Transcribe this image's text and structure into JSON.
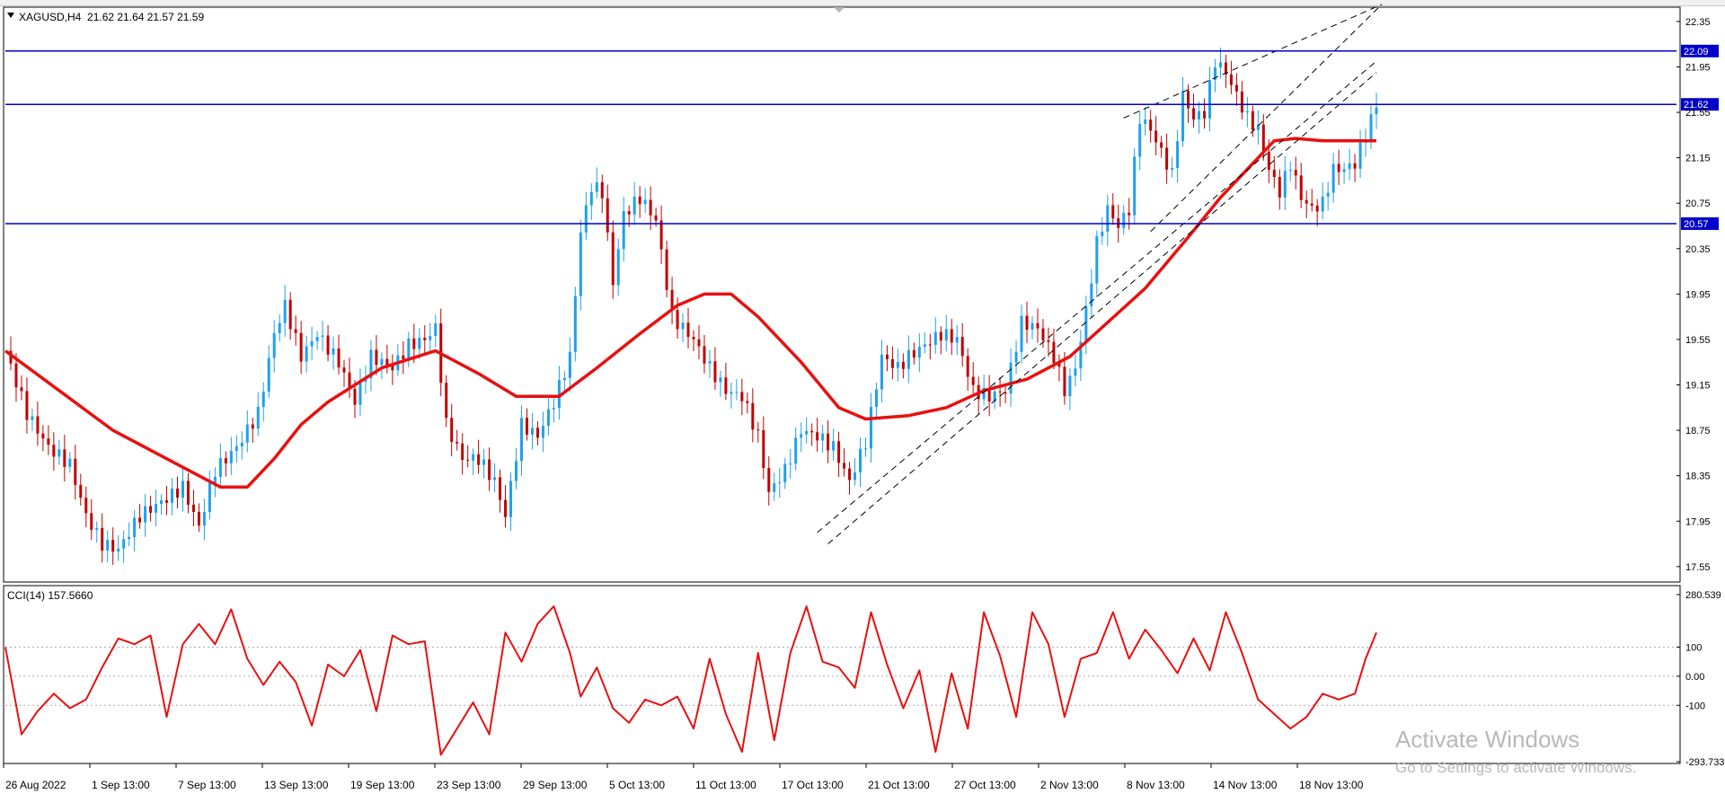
{
  "header": {
    "symbol_line": "XAGUSD,H4  21.62 21.64 21.57 21.59"
  },
  "indicator": {
    "label": "CCI(14) 157.5660"
  },
  "watermark": {
    "title": "Activate Windows",
    "subtitle": "Go to Settings to activate Windows."
  },
  "colors": {
    "bull": "#1ea0f0",
    "bear": "#c00000",
    "ma": "#e81010",
    "hline": "#0000c8",
    "cci": "#e81010",
    "grid": "#aaaaaa",
    "dashed": "#000000"
  },
  "chart_data": [
    {
      "type": "line",
      "description_type": "candlestick",
      "xlabel": "",
      "ylabel": "",
      "ylim": [
        17.43,
        22.46
      ],
      "y_ticks": [
        "22.35",
        "21.95",
        "21.55",
        "21.15",
        "20.75",
        "20.35",
        "19.95",
        "19.55",
        "19.15",
        "18.75",
        "18.35",
        "17.95",
        "17.55"
      ],
      "x_ticks": [
        "26 Aug 2022",
        "1 Sep 13:00",
        "7 Sep 13:00",
        "13 Sep 13:00",
        "19 Sep 13:00",
        "23 Sep 13:00",
        "29 Sep 13:00",
        "5 Oct 13:00",
        "11 Oct 13:00",
        "17 Oct 13:00",
        "21 Oct 13:00",
        "27 Oct 13:00",
        "2 Nov 13:00",
        "8 Nov 13:00",
        "14 Nov 13:00",
        "18 Nov 13:00"
      ],
      "horizontal_levels": [
        "22.09",
        "21.62",
        "20.57"
      ],
      "price_path": [
        [
          0,
          19.45
        ],
        [
          4,
          18.9
        ],
        [
          8,
          18.6
        ],
        [
          12,
          18.45
        ],
        [
          15,
          18.0
        ],
        [
          18,
          17.75
        ],
        [
          21,
          17.7
        ],
        [
          25,
          18.0
        ],
        [
          30,
          18.15
        ],
        [
          33,
          18.25
        ],
        [
          36,
          17.9
        ],
        [
          39,
          18.4
        ],
        [
          43,
          18.6
        ],
        [
          47,
          18.9
        ],
        [
          50,
          19.6
        ],
        [
          52,
          19.85
        ],
        [
          55,
          19.4
        ],
        [
          58,
          19.6
        ],
        [
          62,
          19.35
        ],
        [
          65,
          19.0
        ],
        [
          68,
          19.4
        ],
        [
          72,
          19.3
        ],
        [
          75,
          19.5
        ],
        [
          78,
          19.55
        ],
        [
          80,
          19.65
        ],
        [
          82,
          18.8
        ],
        [
          85,
          18.5
        ],
        [
          88,
          18.5
        ],
        [
          91,
          18.3
        ],
        [
          93,
          18.0
        ],
        [
          96,
          18.8
        ],
        [
          99,
          18.7
        ],
        [
          102,
          19.0
        ],
        [
          105,
          19.4
        ],
        [
          107,
          20.5
        ],
        [
          109,
          20.9
        ],
        [
          111,
          20.85
        ],
        [
          113,
          20.05
        ],
        [
          115,
          20.65
        ],
        [
          118,
          20.8
        ],
        [
          121,
          20.6
        ],
        [
          124,
          19.75
        ],
        [
          128,
          19.55
        ],
        [
          131,
          19.3
        ],
        [
          134,
          19.1
        ],
        [
          137,
          19.05
        ],
        [
          140,
          18.7
        ],
        [
          142,
          18.2
        ],
        [
          145,
          18.4
        ],
        [
          148,
          18.75
        ],
        [
          151,
          18.7
        ],
        [
          154,
          18.6
        ],
        [
          157,
          18.3
        ],
        [
          160,
          18.65
        ],
        [
          163,
          19.4
        ],
        [
          166,
          19.3
        ],
        [
          168,
          19.4
        ],
        [
          171,
          19.5
        ],
        [
          174,
          19.6
        ],
        [
          177,
          19.55
        ],
        [
          180,
          19.1
        ],
        [
          183,
          19.05
        ],
        [
          186,
          19.1
        ],
        [
          189,
          19.7
        ],
        [
          192,
          19.65
        ],
        [
          195,
          19.4
        ],
        [
          197,
          19.1
        ],
        [
          199,
          19.3
        ],
        [
          201,
          19.8
        ],
        [
          203,
          20.4
        ],
        [
          205,
          20.7
        ],
        [
          207,
          20.55
        ],
        [
          209,
          20.7
        ],
        [
          211,
          21.5
        ],
        [
          213,
          21.4
        ],
        [
          215,
          21.2
        ],
        [
          217,
          21.0
        ],
        [
          219,
          21.7
        ],
        [
          221,
          21.5
        ],
        [
          223,
          21.55
        ],
        [
          225,
          22.0
        ],
        [
          227,
          21.9
        ],
        [
          229,
          21.7
        ],
        [
          231,
          21.5
        ],
        [
          233,
          21.4
        ],
        [
          235,
          21.05
        ],
        [
          237,
          20.85
        ],
        [
          239,
          21.1
        ],
        [
          241,
          20.8
        ],
        [
          243,
          20.7
        ],
        [
          245,
          20.75
        ],
        [
          247,
          21.05
        ],
        [
          249,
          21.05
        ],
        [
          251,
          21.1
        ],
        [
          253,
          21.35
        ],
        [
          255,
          21.62
        ]
      ],
      "series": [
        {
          "name": "XAGUSD,H4"
        }
      ],
      "moving_average": [
        [
          0,
          19.45
        ],
        [
          10,
          19.1
        ],
        [
          20,
          18.75
        ],
        [
          30,
          18.5
        ],
        [
          40,
          18.25
        ],
        [
          45,
          18.25
        ],
        [
          50,
          18.5
        ],
        [
          55,
          18.8
        ],
        [
          60,
          19.0
        ],
        [
          70,
          19.3
        ],
        [
          80,
          19.45
        ],
        [
          88,
          19.25
        ],
        [
          95,
          19.05
        ],
        [
          103,
          19.05
        ],
        [
          110,
          19.3
        ],
        [
          118,
          19.6
        ],
        [
          125,
          19.85
        ],
        [
          130,
          19.95
        ],
        [
          135,
          19.95
        ],
        [
          140,
          19.75
        ],
        [
          148,
          19.35
        ],
        [
          155,
          18.95
        ],
        [
          160,
          18.85
        ],
        [
          168,
          18.88
        ],
        [
          175,
          18.95
        ],
        [
          182,
          19.1
        ],
        [
          190,
          19.2
        ],
        [
          198,
          19.4
        ],
        [
          205,
          19.7
        ],
        [
          212,
          20.0
        ],
        [
          220,
          20.45
        ],
        [
          226,
          20.8
        ],
        [
          232,
          21.1
        ],
        [
          236,
          21.3
        ],
        [
          240,
          21.32
        ],
        [
          245,
          21.3
        ],
        [
          250,
          21.3
        ],
        [
          255,
          21.3
        ]
      ],
      "cci_ylim": [
        -293.733,
        280.539
      ],
      "cci_ticks": [
        "280.539",
        "100",
        "0.00",
        "-100",
        "-293.733"
      ],
      "cci": [
        [
          0,
          100
        ],
        [
          3,
          -200
        ],
        [
          6,
          -120
        ],
        [
          9,
          -60
        ],
        [
          12,
          -110
        ],
        [
          15,
          -80
        ],
        [
          18,
          30
        ],
        [
          21,
          130
        ],
        [
          24,
          110
        ],
        [
          27,
          140
        ],
        [
          30,
          -140
        ],
        [
          33,
          110
        ],
        [
          36,
          180
        ],
        [
          39,
          110
        ],
        [
          42,
          230
        ],
        [
          45,
          60
        ],
        [
          48,
          -30
        ],
        [
          51,
          50
        ],
        [
          54,
          -20
        ],
        [
          57,
          -170
        ],
        [
          60,
          40
        ],
        [
          63,
          0
        ],
        [
          66,
          90
        ],
        [
          69,
          -120
        ],
        [
          72,
          140
        ],
        [
          75,
          110
        ],
        [
          78,
          120
        ],
        [
          81,
          -270
        ],
        [
          84,
          -180
        ],
        [
          87,
          -90
        ],
        [
          90,
          -200
        ],
        [
          93,
          150
        ],
        [
          96,
          50
        ],
        [
          99,
          180
        ],
        [
          102,
          240
        ],
        [
          105,
          80
        ],
        [
          107,
          -70
        ],
        [
          110,
          30
        ],
        [
          113,
          -110
        ],
        [
          116,
          -160
        ],
        [
          119,
          -80
        ],
        [
          122,
          -100
        ],
        [
          125,
          -70
        ],
        [
          128,
          -180
        ],
        [
          131,
          60
        ],
        [
          134,
          -130
        ],
        [
          137,
          -260
        ],
        [
          140,
          80
        ],
        [
          143,
          -220
        ],
        [
          146,
          80
        ],
        [
          149,
          240
        ],
        [
          152,
          50
        ],
        [
          155,
          30
        ],
        [
          158,
          -40
        ],
        [
          161,
          220
        ],
        [
          164,
          40
        ],
        [
          167,
          -110
        ],
        [
          170,
          20
        ],
        [
          173,
          -260
        ],
        [
          176,
          10
        ],
        [
          179,
          -180
        ],
        [
          182,
          220
        ],
        [
          185,
          70
        ],
        [
          188,
          -140
        ],
        [
          191,
          220
        ],
        [
          194,
          110
        ],
        [
          197,
          -140
        ],
        [
          200,
          60
        ],
        [
          203,
          80
        ],
        [
          206,
          220
        ],
        [
          209,
          60
        ],
        [
          212,
          160
        ],
        [
          215,
          90
        ],
        [
          218,
          10
        ],
        [
          221,
          130
        ],
        [
          224,
          20
        ],
        [
          227,
          220
        ],
        [
          230,
          80
        ],
        [
          233,
          -80
        ],
        [
          236,
          -130
        ],
        [
          239,
          -180
        ],
        [
          242,
          -140
        ],
        [
          245,
          -60
        ],
        [
          248,
          -80
        ],
        [
          251,
          -60
        ],
        [
          253,
          60
        ],
        [
          255,
          150
        ]
      ]
    }
  ]
}
